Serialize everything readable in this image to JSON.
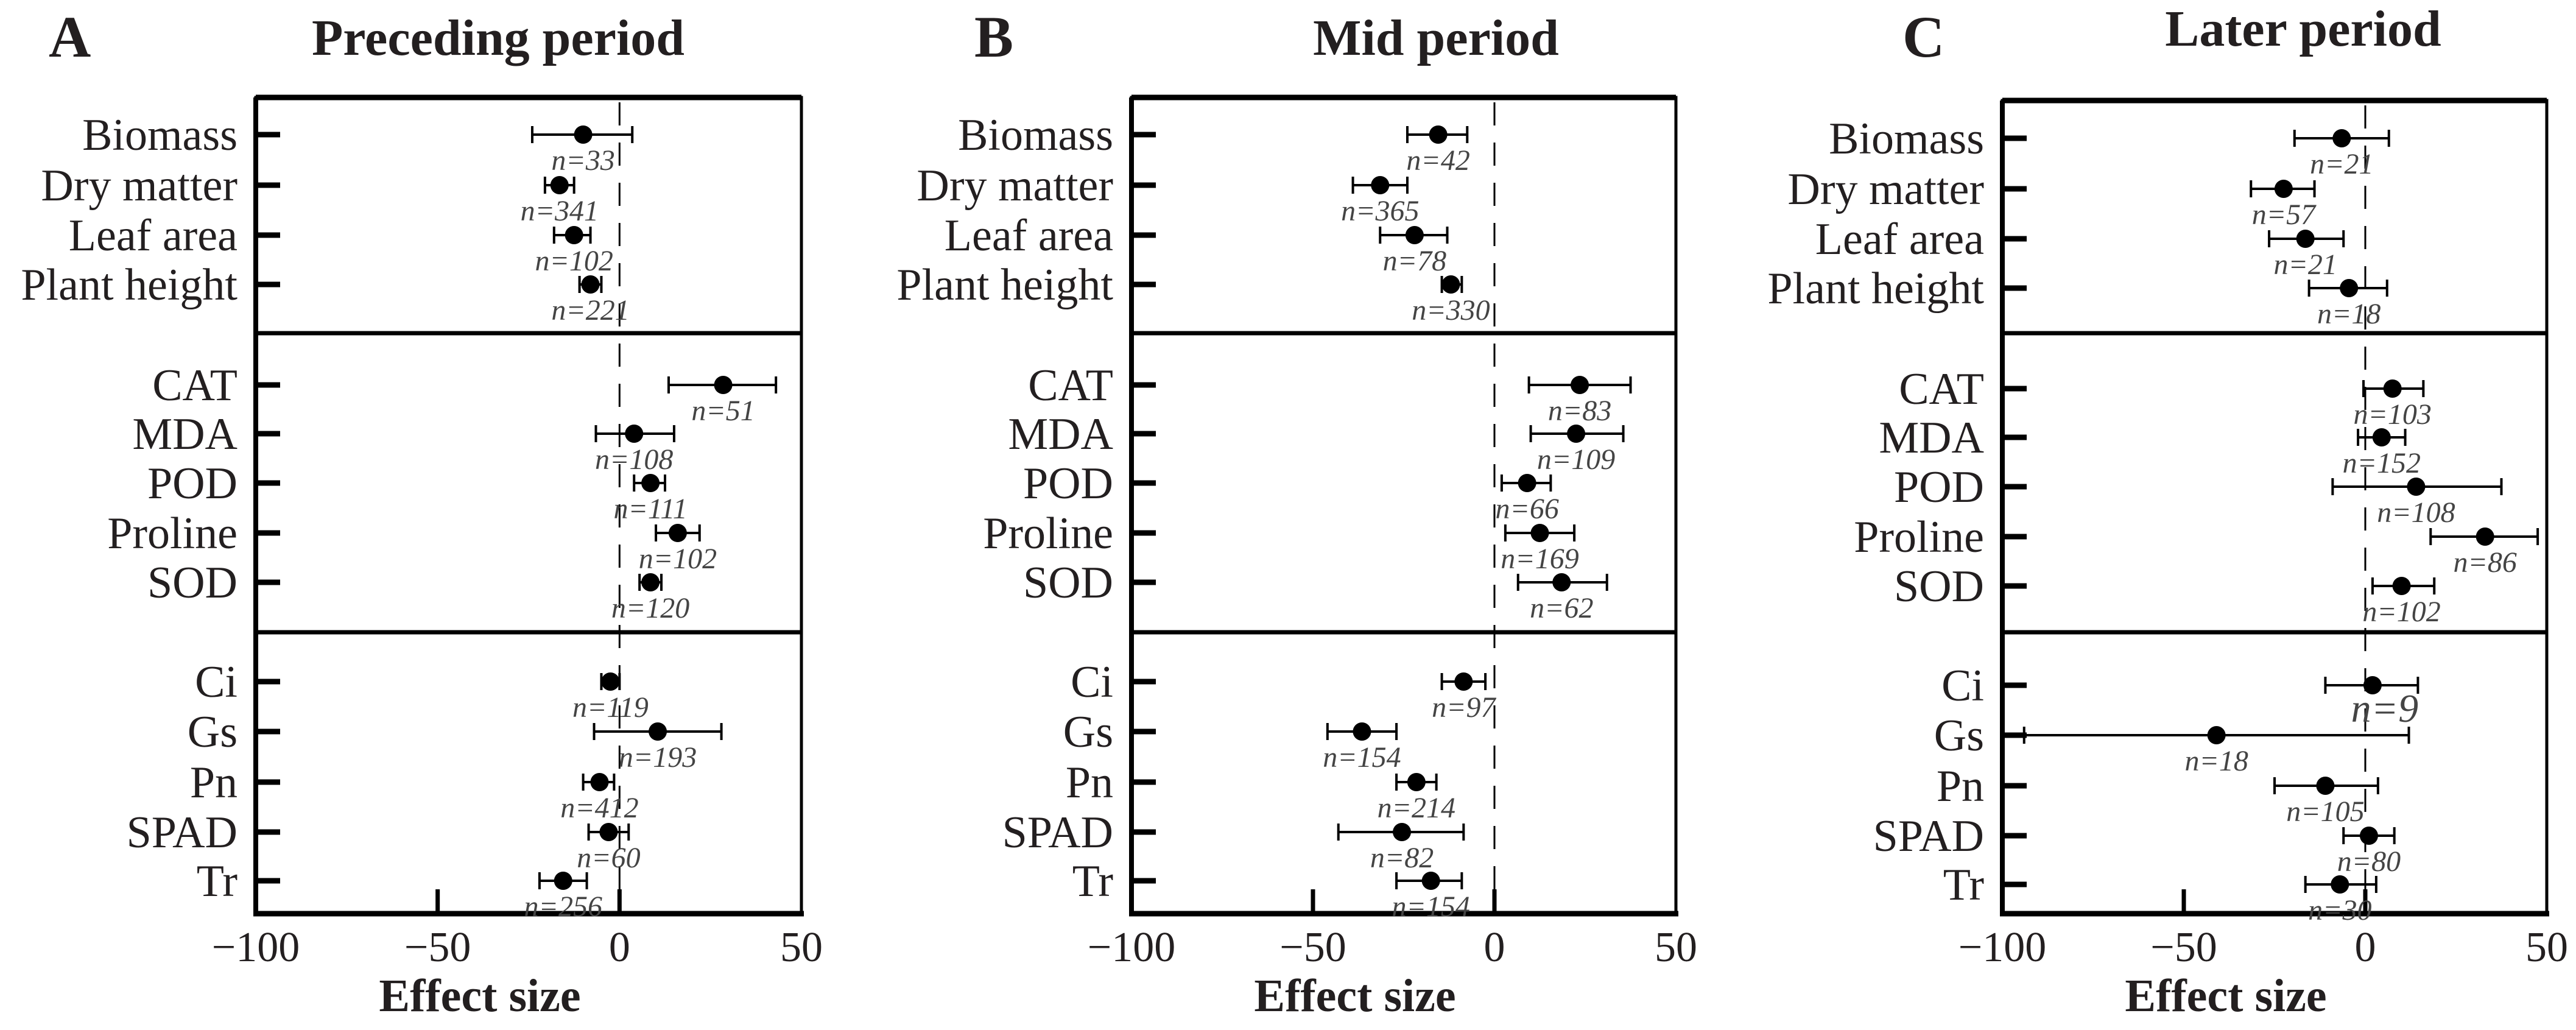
{
  "chart_data": [
    {
      "type": "forest",
      "panel": "A",
      "title": "Preceding period",
      "xlabel": "Effect size",
      "xlim": [
        -100,
        50
      ],
      "xticks": [
        -100,
        -50,
        0,
        50
      ],
      "groups": [
        {
          "items": [
            {
              "label": "Biomass",
              "mean": -10,
              "lo": -24,
              "hi": 3.5,
              "n": "n=33"
            },
            {
              "label": "Dry matter",
              "mean": -16.5,
              "lo": -20.5,
              "hi": -12.5,
              "n": "n=341"
            },
            {
              "label": "Leaf area",
              "mean": -12.5,
              "lo": -18,
              "hi": -8,
              "n": "n=102"
            },
            {
              "label": "Plant height",
              "mean": -8,
              "lo": -11,
              "hi": -5,
              "n": "n=221"
            }
          ]
        },
        {
          "items": [
            {
              "label": "CAT",
              "mean": 28.5,
              "lo": 13.5,
              "hi": 43,
              "n": "n=51"
            },
            {
              "label": "MDA",
              "mean": 4,
              "lo": -6.5,
              "hi": 15,
              "n": "n=108"
            },
            {
              "label": "POD",
              "mean": 8.5,
              "lo": 4,
              "hi": 12.5,
              "n": "n=111"
            },
            {
              "label": "Proline",
              "mean": 16,
              "lo": 10,
              "hi": 22,
              "n": "n=102"
            },
            {
              "label": "SOD",
              "mean": 8.5,
              "lo": 5.5,
              "hi": 11.5,
              "n": "n=120"
            }
          ]
        },
        {
          "items": [
            {
              "label": "Ci",
              "mean": -2.5,
              "lo": -5,
              "hi": 0,
              "n": "n=119"
            },
            {
              "label": "Gs",
              "mean": 10.5,
              "lo": -7,
              "hi": 28,
              "n": "n=193"
            },
            {
              "label": "Pn",
              "mean": -5.5,
              "lo": -10,
              "hi": -1.5,
              "n": "n=412"
            },
            {
              "label": "SPAD",
              "mean": -3,
              "lo": -8.5,
              "hi": 2.5,
              "n": "n=60"
            },
            {
              "label": "Tr",
              "mean": -15.5,
              "lo": -22,
              "hi": -9,
              "n": "n=256"
            }
          ]
        }
      ]
    },
    {
      "type": "forest",
      "panel": "B",
      "title": "Mid period",
      "xlabel": "Effect size",
      "xlim": [
        -100,
        50
      ],
      "xticks": [
        -100,
        -50,
        0,
        50
      ],
      "groups": [
        {
          "items": [
            {
              "label": "Biomass",
              "mean": -15.5,
              "lo": -24,
              "hi": -7.5,
              "n": "n=42"
            },
            {
              "label": "Dry matter",
              "mean": -31.5,
              "lo": -39,
              "hi": -24,
              "n": "n=365"
            },
            {
              "label": "Leaf area",
              "mean": -22,
              "lo": -31.5,
              "hi": -13,
              "n": "n=78"
            },
            {
              "label": "Plant height",
              "mean": -12,
              "lo": -14.5,
              "hi": -9,
              "n": "n=330"
            }
          ]
        },
        {
          "items": [
            {
              "label": "CAT",
              "mean": 23.5,
              "lo": 9.5,
              "hi": 37.5,
              "n": "n=83"
            },
            {
              "label": "MDA",
              "mean": 22.5,
              "lo": 10,
              "hi": 35.5,
              "n": "n=109"
            },
            {
              "label": "POD",
              "mean": 9,
              "lo": 2,
              "hi": 15.5,
              "n": "n=66"
            },
            {
              "label": "Proline",
              "mean": 12.5,
              "lo": 3,
              "hi": 22,
              "n": "n=169"
            },
            {
              "label": "SOD",
              "mean": 18.5,
              "lo": 6.5,
              "hi": 31,
              "n": "n=62"
            }
          ]
        },
        {
          "items": [
            {
              "label": "Ci",
              "mean": -8.5,
              "lo": -14.5,
              "hi": -2.5,
              "n": "n=97"
            },
            {
              "label": "Gs",
              "mean": -36.5,
              "lo": -46,
              "hi": -27,
              "n": "n=154"
            },
            {
              "label": "Pn",
              "mean": -21.5,
              "lo": -27,
              "hi": -16,
              "n": "n=214"
            },
            {
              "label": "SPAD",
              "mean": -25.5,
              "lo": -43,
              "hi": -8.5,
              "n": "n=82"
            },
            {
              "label": "Tr",
              "mean": -17.5,
              "lo": -27,
              "hi": -9,
              "n": "n=154"
            }
          ]
        }
      ]
    },
    {
      "type": "forest",
      "panel": "C",
      "title": "Later period",
      "xlabel": "Effect size",
      "xlim": [
        -100,
        50
      ],
      "xticks": [
        -100,
        -50,
        0,
        50
      ],
      "groups": [
        {
          "items": [
            {
              "label": "Biomass",
              "mean": -6.5,
              "lo": -19.5,
              "hi": 6.5,
              "n": "n=21"
            },
            {
              "label": "Dry matter",
              "mean": -22.5,
              "lo": -31.5,
              "hi": -14,
              "n": "n=57"
            },
            {
              "label": "Leaf area",
              "mean": -16.5,
              "lo": -26.5,
              "hi": -6,
              "n": "n=21"
            },
            {
              "label": "Plant height",
              "mean": -4.5,
              "lo": -15.5,
              "hi": 6,
              "n": "n=18"
            }
          ]
        },
        {
          "items": [
            {
              "label": "CAT",
              "mean": 7.5,
              "lo": -0.5,
              "hi": 16,
              "n": "n=103"
            },
            {
              "label": "MDA",
              "mean": 4.5,
              "lo": -2,
              "hi": 11,
              "n": "n=152"
            },
            {
              "label": "POD",
              "mean": 14,
              "lo": -9,
              "hi": 37.5,
              "n": "n=108"
            },
            {
              "label": "Proline",
              "mean": 33,
              "lo": 18,
              "hi": 47.5,
              "n": "n=86"
            },
            {
              "label": "SOD",
              "mean": 10,
              "lo": 2,
              "hi": 19,
              "n": "n=102"
            }
          ]
        },
        {
          "items": [
            {
              "label": "Ci",
              "mean": 2,
              "lo": -11,
              "hi": 14.5,
              "n": "n=9"
            },
            {
              "label": "Gs",
              "mean": -41,
              "lo": -94,
              "hi": 12,
              "n": "n=18"
            },
            {
              "label": "Pn",
              "mean": -11,
              "lo": -25,
              "hi": 3.5,
              "n": "n=105"
            },
            {
              "label": "SPAD",
              "mean": 1,
              "lo": -6,
              "hi": 8,
              "n": "n=80"
            },
            {
              "label": "Tr",
              "mean": -7,
              "lo": -16.5,
              "hi": 3,
              "n": "n=30"
            }
          ]
        }
      ]
    }
  ],
  "colors": {
    "ink": "#000000",
    "text": "#231f20",
    "nlabel": "#444444"
  }
}
